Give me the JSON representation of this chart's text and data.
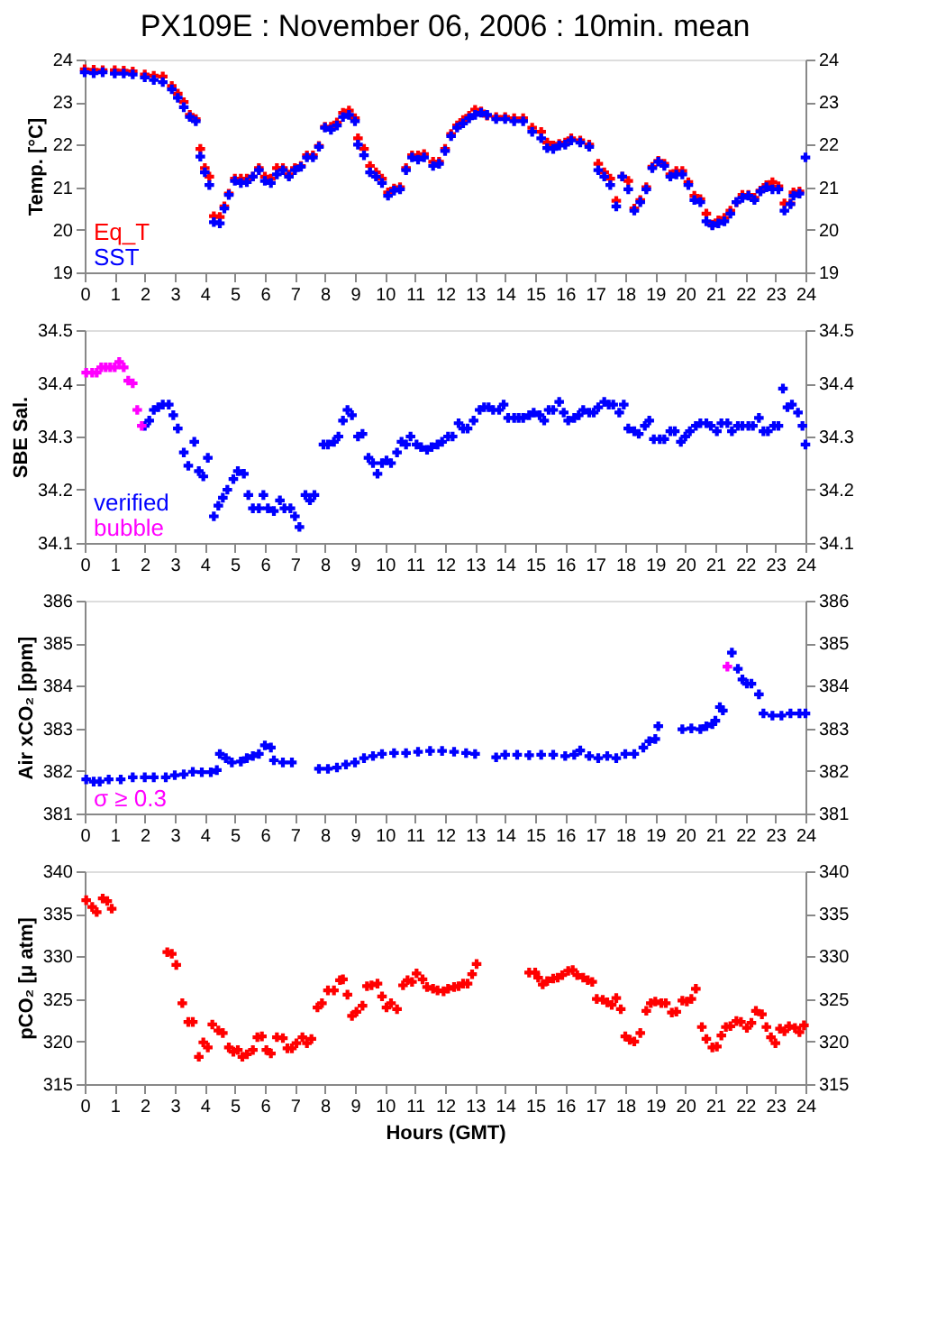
{
  "chart_data": [
    {
      "type": "scatter",
      "title": "PX109E : November 06, 2006 : 10min. mean",
      "ylabel": "Temp. [°C]",
      "marker": "cross",
      "legend": "bottom left",
      "xlim": [
        0,
        24
      ],
      "xticks": [
        0,
        1,
        2,
        3,
        4,
        5,
        6,
        7,
        8,
        9,
        10,
        11,
        12,
        13,
        14,
        15,
        16,
        17,
        18,
        19,
        20,
        21,
        22,
        23,
        24
      ],
      "ylim": [
        19,
        24
      ],
      "yticks": [
        19,
        20,
        21,
        22,
        23,
        24
      ],
      "y2lim": [
        19,
        24
      ],
      "y2ticks": [
        19,
        20,
        21,
        22,
        23,
        24
      ],
      "x": [
        0,
        0.3,
        0.6,
        1.0,
        1.3,
        1.6,
        2.0,
        2.3,
        2.6,
        2.9,
        3.1,
        3.3,
        3.5,
        3.7,
        3.85,
        4.0,
        4.15,
        4.3,
        4.5,
        4.65,
        4.8,
        5.0,
        5.2,
        5.4,
        5.6,
        5.8,
        6.0,
        6.2,
        6.4,
        6.6,
        6.8,
        7.0,
        7.2,
        7.4,
        7.6,
        7.8,
        8.0,
        8.2,
        8.4,
        8.6,
        8.8,
        9.0,
        9.1,
        9.3,
        9.5,
        9.7,
        9.9,
        10.1,
        10.3,
        10.5,
        10.7,
        10.9,
        11.1,
        11.3,
        11.6,
        11.8,
        12.0,
        12.2,
        12.4,
        12.6,
        12.8,
        13.0,
        13.2,
        13.4,
        13.7,
        14.0,
        14.3,
        14.6,
        14.9,
        15.2,
        15.4,
        15.6,
        15.8,
        16.0,
        16.2,
        16.5,
        16.8,
        17.1,
        17.3,
        17.5,
        17.7,
        17.9,
        18.1,
        18.3,
        18.5,
        18.7,
        18.9,
        19.1,
        19.3,
        19.5,
        19.7,
        19.9,
        20.1,
        20.3,
        20.5,
        20.7,
        20.9,
        21.1,
        21.3,
        21.5,
        21.7,
        21.9,
        22.1,
        22.3,
        22.5,
        22.7,
        22.9,
        23.1,
        23.3,
        23.5,
        23.6,
        23.8,
        24.0
      ],
      "series": [
        {
          "name": "Eq_T",
          "color": "#ff0000",
          "values": [
            23.77,
            23.76,
            23.75,
            23.75,
            23.74,
            23.72,
            23.65,
            23.62,
            23.6,
            23.38,
            23.2,
            23.0,
            22.7,
            22.6,
            21.9,
            21.45,
            21.25,
            20.32,
            20.3,
            20.55,
            20.85,
            21.2,
            21.2,
            21.2,
            21.25,
            21.45,
            21.25,
            21.2,
            21.45,
            21.45,
            21.3,
            21.45,
            21.5,
            21.75,
            21.75,
            21.97,
            22.42,
            22.42,
            22.52,
            22.75,
            22.8,
            22.62,
            22.15,
            21.9,
            21.5,
            21.35,
            21.2,
            20.88,
            20.97,
            21.0,
            21.45,
            21.75,
            21.75,
            21.78,
            21.6,
            21.6,
            21.9,
            22.25,
            22.45,
            22.58,
            22.68,
            22.82,
            22.78,
            22.68,
            22.65,
            22.65,
            22.62,
            22.62,
            22.4,
            22.3,
            22.05,
            21.98,
            22.02,
            22.05,
            22.15,
            22.1,
            22.0,
            21.55,
            21.35,
            21.2,
            20.68,
            21.25,
            21.15,
            20.5,
            20.7,
            21.0,
            21.48,
            21.62,
            21.55,
            21.3,
            21.38,
            21.38,
            21.12,
            20.8,
            20.72,
            20.38,
            20.12,
            20.22,
            20.28,
            20.45,
            20.65,
            20.82,
            20.82,
            20.75,
            20.92,
            21.05,
            21.12,
            21.02,
            20.62,
            20.62,
            20.88,
            20.9,
            null
          ]
        },
        {
          "name": "SST",
          "color": "#0000ff",
          "values": [
            23.7,
            23.68,
            23.7,
            23.67,
            23.67,
            23.65,
            23.58,
            23.52,
            23.47,
            23.3,
            23.1,
            22.88,
            22.65,
            22.55,
            21.72,
            21.35,
            21.05,
            20.18,
            20.15,
            20.5,
            20.82,
            21.15,
            21.1,
            21.12,
            21.25,
            21.4,
            21.15,
            21.1,
            21.3,
            21.4,
            21.25,
            21.4,
            21.48,
            21.7,
            21.7,
            21.95,
            22.4,
            22.35,
            22.45,
            22.65,
            22.7,
            22.55,
            22.0,
            21.75,
            21.35,
            21.25,
            21.1,
            20.8,
            20.92,
            20.95,
            21.4,
            21.7,
            21.65,
            21.7,
            21.5,
            21.55,
            21.85,
            22.2,
            22.4,
            22.5,
            22.62,
            22.7,
            22.75,
            22.7,
            22.6,
            22.6,
            22.55,
            22.55,
            22.3,
            22.15,
            21.92,
            21.9,
            21.98,
            22.0,
            22.1,
            22.05,
            21.95,
            21.4,
            21.25,
            21.05,
            20.55,
            21.25,
            20.95,
            20.45,
            20.65,
            20.95,
            21.45,
            21.6,
            21.5,
            21.25,
            21.3,
            21.3,
            21.05,
            20.7,
            20.65,
            20.2,
            20.1,
            20.15,
            20.2,
            20.38,
            20.65,
            20.75,
            20.8,
            20.7,
            20.9,
            21.0,
            20.95,
            20.95,
            20.45,
            20.6,
            20.8,
            20.85,
            21.7
          ]
        }
      ]
    },
    {
      "type": "scatter",
      "ylabel": "SBE Sal.",
      "marker": "cross",
      "legend": "bottom left",
      "xlim": [
        0,
        24
      ],
      "xticks": [
        0,
        1,
        2,
        3,
        4,
        5,
        6,
        7,
        8,
        9,
        10,
        11,
        12,
        13,
        14,
        15,
        16,
        17,
        18,
        19,
        20,
        21,
        22,
        23,
        24
      ],
      "ylim": [
        34.1,
        34.5
      ],
      "yticks": [
        34.1,
        34.2,
        34.3,
        34.4,
        34.5
      ],
      "y2lim": [
        34.1,
        34.5
      ],
      "y2ticks": [
        34.1,
        34.2,
        34.3,
        34.4,
        34.5
      ],
      "series": [
        {
          "name": "verified",
          "color": "#0000ff",
          "x": [
            2.0,
            2.15,
            2.3,
            2.45,
            2.6,
            2.8,
            2.95,
            3.1,
            3.3,
            3.45,
            3.65,
            3.8,
            3.95,
            4.1,
            4.3,
            4.45,
            4.6,
            4.75,
            4.95,
            5.1,
            5.3,
            5.45,
            5.6,
            5.8,
            5.95,
            6.1,
            6.3,
            6.5,
            6.65,
            6.85,
            7.0,
            7.15,
            7.35,
            7.5,
            7.65,
            7.95,
            8.1,
            8.3,
            8.45,
            8.6,
            8.75,
            8.9,
            9.1,
            9.25,
            9.45,
            9.6,
            9.75,
            9.9,
            10.05,
            10.2,
            10.4,
            10.55,
            10.7,
            10.85,
            11.05,
            11.2,
            11.4,
            11.55,
            11.75,
            11.9,
            12.1,
            12.25,
            12.45,
            12.6,
            12.75,
            12.95,
            13.15,
            13.3,
            13.45,
            13.6,
            13.8,
            13.95,
            14.1,
            14.3,
            14.45,
            14.6,
            14.8,
            14.95,
            15.15,
            15.3,
            15.45,
            15.6,
            15.8,
            15.95,
            16.1,
            16.3,
            16.45,
            16.6,
            16.8,
            16.95,
            17.1,
            17.3,
            17.45,
            17.6,
            17.8,
            17.95,
            18.1,
            18.3,
            18.45,
            18.65,
            18.8,
            18.95,
            19.15,
            19.3,
            19.5,
            19.65,
            19.85,
            20.0,
            20.15,
            20.35,
            20.5,
            20.7,
            20.85,
            21.05,
            21.2,
            21.4,
            21.55,
            21.75,
            21.9,
            22.1,
            22.25,
            22.45,
            22.6,
            22.75,
            22.95,
            23.1,
            23.25,
            23.4,
            23.55,
            23.75,
            23.9,
            24.0
          ],
          "values": [
            34.32,
            34.33,
            34.35,
            34.355,
            34.36,
            34.36,
            34.34,
            34.315,
            34.27,
            34.245,
            34.29,
            34.235,
            34.225,
            34.26,
            34.15,
            34.17,
            34.185,
            34.2,
            34.22,
            34.235,
            34.23,
            34.19,
            34.165,
            34.165,
            34.19,
            34.165,
            34.16,
            34.18,
            34.165,
            34.165,
            34.15,
            34.13,
            34.19,
            34.18,
            34.19,
            34.285,
            34.285,
            34.29,
            34.3,
            34.33,
            34.35,
            34.34,
            34.3,
            34.305,
            34.26,
            34.25,
            34.23,
            34.25,
            34.255,
            34.25,
            34.27,
            34.29,
            34.285,
            34.3,
            34.285,
            34.28,
            34.275,
            34.28,
            34.285,
            34.29,
            34.3,
            34.3,
            34.325,
            34.315,
            34.315,
            34.33,
            34.35,
            34.355,
            34.355,
            34.35,
            34.35,
            34.36,
            34.335,
            34.335,
            34.335,
            34.335,
            34.34,
            34.345,
            34.34,
            34.33,
            34.35,
            34.35,
            34.365,
            34.345,
            34.33,
            34.335,
            34.34,
            34.35,
            34.345,
            34.345,
            34.355,
            34.365,
            34.36,
            34.36,
            34.345,
            34.36,
            34.315,
            34.31,
            34.305,
            34.32,
            34.33,
            34.295,
            34.295,
            34.295,
            34.31,
            34.31,
            34.29,
            34.3,
            34.31,
            34.32,
            34.325,
            34.325,
            34.32,
            34.31,
            34.325,
            34.325,
            34.31,
            34.32,
            34.32,
            34.32,
            34.32,
            34.335,
            34.31,
            34.31,
            34.32,
            34.32,
            34.39,
            34.355,
            34.36,
            34.345,
            34.32,
            34.285
          ]
        },
        {
          "name": "bubble",
          "color": "#ff00ff",
          "x": [
            0.05,
            0.25,
            0.4,
            0.55,
            0.7,
            0.85,
            1.0,
            1.15,
            1.3,
            1.45,
            1.6,
            1.75,
            1.9
          ],
          "values": [
            34.42,
            34.42,
            34.42,
            34.43,
            34.43,
            34.43,
            34.43,
            34.44,
            34.43,
            34.405,
            34.4,
            34.35,
            34.32
          ]
        }
      ]
    },
    {
      "type": "scatter",
      "ylabel": "Air xCO₂ [ppm]",
      "marker": "cross",
      "legend": "bottom left",
      "xlim": [
        0,
        24
      ],
      "xticks": [
        0,
        1,
        2,
        3,
        4,
        5,
        6,
        7,
        8,
        9,
        10,
        11,
        12,
        13,
        14,
        15,
        16,
        17,
        18,
        19,
        20,
        21,
        22,
        23,
        24
      ],
      "ylim": [
        381,
        386
      ],
      "yticks": [
        381,
        382,
        383,
        384,
        385,
        386
      ],
      "y2lim": [
        381,
        386
      ],
      "y2ticks": [
        381,
        382,
        383,
        384,
        385,
        386
      ],
      "series": [
        {
          "color": "#0000ff",
          "x": [
            0.05,
            0.3,
            0.5,
            0.8,
            1.2,
            1.6,
            2.0,
            2.3,
            2.7,
            3.0,
            3.3,
            3.6,
            3.9,
            4.2,
            4.4,
            4.5,
            4.7,
            4.9,
            5.2,
            5.4,
            5.6,
            5.8,
            6.0,
            6.2,
            6.3,
            6.6,
            6.9,
            7.8,
            8.1,
            8.4,
            8.7,
            9.0,
            9.3,
            9.6,
            9.9,
            10.3,
            10.7,
            11.1,
            11.5,
            11.9,
            12.3,
            12.7,
            13.0,
            13.7,
            14.0,
            14.4,
            14.8,
            15.2,
            15.6,
            16.0,
            16.3,
            16.5,
            16.8,
            17.1,
            17.4,
            17.7,
            18.0,
            18.3,
            18.6,
            18.8,
            19.0,
            19.1,
            19.9,
            20.2,
            20.5,
            20.7,
            20.9,
            21.0,
            21.15,
            21.25,
            21.55,
            21.75,
            21.9,
            22.05,
            22.2,
            22.45,
            22.6,
            22.9,
            23.2,
            23.5,
            23.8,
            24.0
          ],
          "values": [
            381.8,
            381.75,
            381.75,
            381.8,
            381.8,
            381.85,
            381.85,
            381.85,
            381.85,
            381.9,
            381.92,
            381.98,
            381.97,
            381.97,
            382.02,
            382.4,
            382.3,
            382.2,
            382.22,
            382.3,
            382.35,
            382.4,
            382.6,
            382.55,
            382.25,
            382.2,
            382.2,
            382.05,
            382.05,
            382.08,
            382.15,
            382.2,
            382.3,
            382.35,
            382.4,
            382.42,
            382.42,
            382.45,
            382.47,
            382.47,
            382.45,
            382.42,
            382.4,
            382.32,
            382.38,
            382.38,
            382.37,
            382.38,
            382.38,
            382.35,
            382.38,
            382.48,
            382.35,
            382.3,
            382.35,
            382.3,
            382.4,
            382.4,
            382.55,
            382.7,
            382.75,
            383.05,
            382.98,
            383.0,
            382.98,
            383.05,
            383.1,
            383.18,
            383.5,
            383.42,
            384.78,
            384.4,
            384.15,
            384.05,
            384.05,
            383.8,
            383.35,
            383.3,
            383.3,
            383.35,
            383.35,
            383.35
          ]
        },
        {
          "name": "σ ≥ 0.3",
          "color": "#ff00ff",
          "x": [
            21.4
          ],
          "values": [
            384.45
          ]
        }
      ]
    },
    {
      "type": "scatter",
      "ylabel": "pCO₂ [μ atm]",
      "xlabel": "Hours (GMT)",
      "marker": "cross",
      "xlim": [
        0,
        24
      ],
      "xticks": [
        0,
        1,
        2,
        3,
        4,
        5,
        6,
        7,
        8,
        9,
        10,
        11,
        12,
        13,
        14,
        15,
        16,
        17,
        18,
        19,
        20,
        21,
        22,
        23,
        24
      ],
      "ylim": [
        315,
        340
      ],
      "yticks": [
        315,
        320,
        325,
        330,
        335,
        340
      ],
      "y2lim": [
        315,
        340
      ],
      "y2ticks": [
        315,
        320,
        325,
        330,
        335,
        340
      ],
      "series": [
        {
          "color": "#ff0000",
          "x": [
            0.05,
            0.25,
            0.4,
            0.6,
            0.75,
            0.9,
            2.75,
            2.9,
            3.05,
            3.25,
            3.45,
            3.6,
            3.8,
            3.95,
            4.1,
            4.25,
            4.45,
            4.6,
            4.8,
            4.95,
            5.1,
            5.25,
            5.4,
            5.6,
            5.75,
            5.9,
            6.05,
            6.2,
            6.4,
            6.6,
            6.75,
            6.9,
            7.05,
            7.25,
            7.4,
            7.55,
            7.75,
            7.9,
            8.1,
            8.3,
            8.5,
            8.6,
            8.75,
            8.9,
            9.05,
            9.25,
            9.4,
            9.55,
            9.75,
            9.9,
            10.05,
            10.2,
            10.4,
            10.6,
            10.75,
            10.9,
            11.05,
            11.25,
            11.4,
            11.6,
            11.75,
            11.95,
            12.1,
            12.3,
            12.45,
            12.6,
            12.75,
            12.9,
            13.05,
            14.8,
            15.0,
            15.1,
            15.25,
            15.4,
            15.6,
            15.75,
            15.9,
            16.1,
            16.25,
            16.4,
            16.6,
            16.75,
            16.9,
            17.05,
            17.25,
            17.4,
            17.55,
            17.7,
            17.85,
            18.0,
            18.15,
            18.3,
            18.5,
            18.7,
            18.85,
            19.0,
            19.2,
            19.35,
            19.55,
            19.7,
            19.9,
            20.05,
            20.2,
            20.35,
            20.55,
            20.7,
            20.9,
            21.05,
            21.2,
            21.35,
            21.5,
            21.7,
            21.85,
            22.05,
            22.2,
            22.35,
            22.55,
            22.7,
            22.85,
            23.0,
            23.15,
            23.3,
            23.45,
            23.65,
            23.8,
            23.95
          ],
          "values": [
            336.6,
            335.8,
            335.2,
            336.8,
            336.5,
            335.6,
            330.5,
            330.3,
            329.0,
            324.5,
            322.3,
            322.3,
            318.2,
            319.9,
            319.3,
            322.0,
            321.3,
            321.0,
            319.3,
            318.8,
            319.0,
            318.2,
            318.5,
            319.0,
            320.5,
            320.6,
            319.0,
            318.6,
            320.5,
            320.4,
            319.2,
            319.2,
            319.8,
            320.5,
            319.8,
            320.3,
            324.0,
            324.5,
            326.0,
            326.0,
            327.2,
            327.3,
            325.5,
            323.0,
            323.5,
            324.2,
            326.5,
            326.6,
            326.8,
            325.3,
            324.0,
            324.5,
            323.8,
            326.6,
            327.2,
            327.0,
            328.0,
            327.3,
            326.4,
            326.2,
            326.0,
            325.9,
            326.2,
            326.4,
            326.5,
            326.8,
            326.8,
            327.9,
            329.1,
            328.1,
            328.1,
            327.5,
            326.7,
            327.1,
            327.4,
            327.5,
            327.8,
            328.3,
            328.4,
            327.8,
            327.5,
            327.2,
            327.0,
            325.0,
            324.9,
            324.6,
            324.3,
            325.1,
            323.8,
            320.6,
            320.2,
            320.0,
            321.0,
            323.6,
            324.5,
            324.7,
            324.5,
            324.5,
            323.4,
            323.5,
            324.8,
            324.7,
            325.0,
            326.2,
            321.7,
            320.3,
            319.3,
            319.4,
            320.7,
            321.7,
            321.8,
            322.4,
            322.3,
            321.6,
            322.2,
            323.6,
            323.2,
            321.7,
            320.5,
            319.8,
            321.5,
            321.2,
            321.8,
            321.6,
            321.1,
            321.9
          ]
        }
      ]
    }
  ]
}
